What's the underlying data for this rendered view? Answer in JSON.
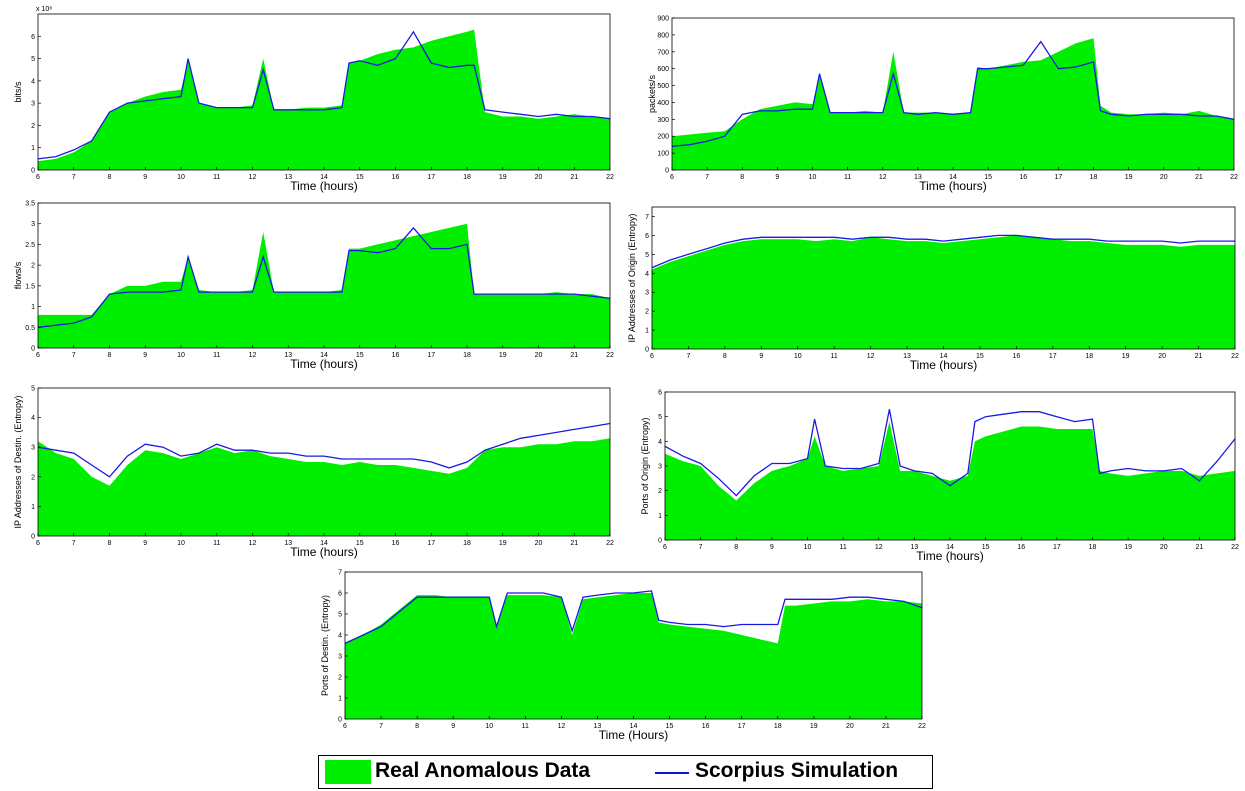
{
  "colors": {
    "real": "#00ee00",
    "sim": "#1a1ae0",
    "axis": "#000000"
  },
  "legend": {
    "real_label": "Real Anomalous Data",
    "sim_label": "Scorpius Simulation"
  },
  "chart_data": [
    {
      "type": "area",
      "ylabel": "bits/s",
      "xlabel": "Time (hours)",
      "yexponent": "x 10⁸",
      "xlim": [
        6,
        22
      ],
      "ylim": [
        0,
        7
      ],
      "yticks": [
        0,
        1,
        2,
        3,
        4,
        5,
        6
      ],
      "x": [
        6,
        6.5,
        7,
        7.5,
        8,
        8.5,
        9,
        9.5,
        10,
        10.2,
        10.5,
        11,
        11.5,
        12,
        12.3,
        12.6,
        13,
        13.5,
        14,
        14.5,
        14.7,
        15,
        15.5,
        16,
        16.5,
        17,
        17.5,
        18,
        18.2,
        18.5,
        19,
        19.5,
        20,
        20.5,
        21,
        21.5,
        22
      ],
      "series": [
        {
          "name": "Real Anomalous Data",
          "values": [
            0.4,
            0.5,
            0.8,
            1.3,
            2.6,
            3.0,
            3.3,
            3.5,
            3.6,
            4.9,
            3.0,
            2.8,
            2.8,
            2.9,
            5.0,
            2.7,
            2.7,
            2.8,
            2.8,
            2.9,
            4.8,
            4.9,
            5.2,
            5.4,
            5.5,
            5.8,
            6.0,
            6.2,
            6.3,
            2.6,
            2.4,
            2.4,
            2.3,
            2.4,
            2.5,
            2.4,
            2.3
          ]
        },
        {
          "name": "Scorpius Simulation",
          "values": [
            0.5,
            0.6,
            0.9,
            1.3,
            2.6,
            3.0,
            3.1,
            3.2,
            3.3,
            5.0,
            3.0,
            2.8,
            2.8,
            2.8,
            4.5,
            2.7,
            2.7,
            2.7,
            2.7,
            2.8,
            4.8,
            4.9,
            4.7,
            5.0,
            6.2,
            4.8,
            4.6,
            4.7,
            4.7,
            2.7,
            2.6,
            2.5,
            2.4,
            2.5,
            2.4,
            2.4,
            2.3
          ]
        }
      ]
    },
    {
      "type": "area",
      "ylabel": "packets/s",
      "xlabel": "Time (hours)",
      "xlim": [
        6,
        22
      ],
      "ylim": [
        0,
        900
      ],
      "yticks": [
        0,
        100,
        200,
        300,
        400,
        500,
        600,
        700,
        800,
        900
      ],
      "x": [
        6,
        6.5,
        7,
        7.5,
        8,
        8.5,
        9,
        9.5,
        10,
        10.2,
        10.5,
        11,
        11.5,
        12,
        12.3,
        12.6,
        13,
        13.5,
        14,
        14.5,
        14.7,
        15,
        15.5,
        16,
        16.5,
        17,
        17.5,
        18,
        18.2,
        18.5,
        19,
        19.5,
        20,
        20.5,
        21,
        21.5,
        22
      ],
      "series": [
        {
          "name": "Real Anomalous Data",
          "values": [
            200,
            210,
            220,
            230,
            300,
            360,
            380,
            400,
            390,
            560,
            340,
            340,
            350,
            340,
            700,
            340,
            340,
            340,
            330,
            340,
            610,
            600,
            620,
            640,
            650,
            700,
            750,
            780,
            380,
            340,
            330,
            330,
            340,
            330,
            350,
            320,
            300
          ]
        },
        {
          "name": "Scorpius Simulation",
          "values": [
            140,
            150,
            170,
            200,
            330,
            350,
            350,
            360,
            360,
            570,
            340,
            340,
            340,
            340,
            570,
            340,
            330,
            340,
            330,
            340,
            600,
            600,
            610,
            620,
            760,
            600,
            610,
            640,
            350,
            330,
            320,
            330,
            330,
            330,
            320,
            320,
            300
          ]
        }
      ]
    },
    {
      "type": "area",
      "ylabel": "flows/s",
      "xlabel": "Time (hours)",
      "xlim": [
        6,
        22
      ],
      "ylim": [
        0,
        3.5
      ],
      "yticks": [
        0,
        0.5,
        1,
        1.5,
        2,
        2.5,
        3,
        3.5
      ],
      "x": [
        6,
        6.5,
        7,
        7.5,
        8,
        8.5,
        9,
        9.5,
        10,
        10.2,
        10.5,
        11,
        11.5,
        12,
        12.3,
        12.6,
        13,
        13.5,
        14,
        14.5,
        14.7,
        15,
        15.5,
        16,
        16.5,
        17,
        17.5,
        18,
        18.2,
        18.5,
        19,
        19.5,
        20,
        20.5,
        21,
        21.5,
        22
      ],
      "series": [
        {
          "name": "Real Anomalous Data",
          "values": [
            0.8,
            0.8,
            0.8,
            0.8,
            1.3,
            1.5,
            1.5,
            1.6,
            1.6,
            2.2,
            1.4,
            1.35,
            1.35,
            1.4,
            2.8,
            1.35,
            1.35,
            1.35,
            1.35,
            1.4,
            2.4,
            2.4,
            2.5,
            2.6,
            2.7,
            2.8,
            2.9,
            3.0,
            1.3,
            1.3,
            1.3,
            1.3,
            1.3,
            1.35,
            1.3,
            1.3,
            1.2
          ]
        },
        {
          "name": "Scorpius Simulation",
          "values": [
            0.5,
            0.55,
            0.6,
            0.75,
            1.3,
            1.35,
            1.35,
            1.35,
            1.4,
            2.2,
            1.35,
            1.35,
            1.35,
            1.35,
            2.2,
            1.35,
            1.35,
            1.35,
            1.35,
            1.35,
            2.35,
            2.35,
            2.3,
            2.4,
            2.9,
            2.4,
            2.4,
            2.5,
            1.3,
            1.3,
            1.3,
            1.3,
            1.3,
            1.3,
            1.3,
            1.25,
            1.2
          ]
        }
      ]
    },
    {
      "type": "area",
      "ylabel": "IP Addresses of Origin (Entropy)",
      "xlabel": "Time (hours)",
      "xlim": [
        6,
        22
      ],
      "ylim": [
        0,
        7.5
      ],
      "yticks": [
        0,
        1,
        2,
        3,
        4,
        5,
        6,
        7
      ],
      "x": [
        6,
        6.5,
        7,
        7.5,
        8,
        8.5,
        9,
        9.5,
        10,
        10.5,
        11,
        11.5,
        12,
        12.5,
        13,
        13.5,
        14,
        14.5,
        15,
        15.5,
        16,
        16.5,
        17,
        17.5,
        18,
        18.5,
        19,
        19.5,
        20,
        20.5,
        21,
        21.5,
        22
      ],
      "series": [
        {
          "name": "Real Anomalous Data",
          "values": [
            4.2,
            4.6,
            4.9,
            5.2,
            5.5,
            5.7,
            5.8,
            5.8,
            5.8,
            5.7,
            5.8,
            5.7,
            5.9,
            5.8,
            5.7,
            5.7,
            5.6,
            5.7,
            5.8,
            5.9,
            6.0,
            5.9,
            5.8,
            5.7,
            5.7,
            5.6,
            5.5,
            5.5,
            5.5,
            5.4,
            5.5,
            5.5,
            5.5
          ]
        },
        {
          "name": "Scorpius Simulation",
          "values": [
            4.3,
            4.7,
            5.0,
            5.3,
            5.6,
            5.8,
            5.9,
            5.9,
            5.9,
            5.9,
            5.9,
            5.8,
            5.9,
            5.9,
            5.8,
            5.8,
            5.7,
            5.8,
            5.9,
            6.0,
            6.0,
            5.9,
            5.8,
            5.8,
            5.8,
            5.7,
            5.7,
            5.7,
            5.7,
            5.6,
            5.7,
            5.7,
            5.7
          ]
        }
      ]
    },
    {
      "type": "area",
      "ylabel": "IP Addresses of Destin. (Entropy)",
      "xlabel": "Time (hours)",
      "xlim": [
        6,
        22
      ],
      "ylim": [
        0,
        5
      ],
      "yticks": [
        0,
        1,
        2,
        3,
        4,
        5
      ],
      "x": [
        6,
        6.5,
        7,
        7.5,
        8,
        8.5,
        9,
        9.5,
        10,
        10.5,
        11,
        11.5,
        12,
        12.5,
        13,
        13.5,
        14,
        14.5,
        15,
        15.5,
        16,
        16.5,
        17,
        17.5,
        18,
        18.5,
        19,
        19.5,
        20,
        20.5,
        21,
        21.5,
        22
      ],
      "series": [
        {
          "name": "Real Anomalous Data",
          "values": [
            3.2,
            2.8,
            2.6,
            2.0,
            1.7,
            2.4,
            2.9,
            2.8,
            2.6,
            2.8,
            3.0,
            2.8,
            2.9,
            2.7,
            2.6,
            2.5,
            2.5,
            2.4,
            2.5,
            2.4,
            2.4,
            2.3,
            2.2,
            2.1,
            2.3,
            2.9,
            3.0,
            3.0,
            3.1,
            3.1,
            3.2,
            3.2,
            3.3
          ]
        },
        {
          "name": "Scorpius Simulation",
          "values": [
            3.0,
            2.9,
            2.8,
            2.4,
            2.0,
            2.7,
            3.1,
            3.0,
            2.7,
            2.8,
            3.1,
            2.9,
            2.9,
            2.8,
            2.8,
            2.7,
            2.7,
            2.6,
            2.6,
            2.6,
            2.6,
            2.6,
            2.5,
            2.3,
            2.5,
            2.9,
            3.1,
            3.3,
            3.4,
            3.5,
            3.6,
            3.7,
            3.8
          ]
        }
      ]
    },
    {
      "type": "area",
      "ylabel": "Ports of Origin (Entropy)",
      "xlabel": "Time (hours)",
      "xlim": [
        6,
        22
      ],
      "ylim": [
        0,
        6
      ],
      "yticks": [
        0,
        1,
        2,
        3,
        4,
        5,
        6
      ],
      "x": [
        6,
        6.5,
        7,
        7.5,
        8,
        8.5,
        9,
        9.5,
        10,
        10.2,
        10.5,
        11,
        11.5,
        12,
        12.3,
        12.6,
        13,
        13.5,
        14,
        14.5,
        14.7,
        15,
        15.5,
        16,
        16.5,
        17,
        17.5,
        18,
        18.2,
        18.5,
        19,
        19.5,
        20,
        20.5,
        21,
        21.5,
        22
      ],
      "series": [
        {
          "name": "Real Anomalous Data",
          "values": [
            3.5,
            3.2,
            3.0,
            2.2,
            1.6,
            2.3,
            2.8,
            3.0,
            3.3,
            4.2,
            3.0,
            2.8,
            2.9,
            3.0,
            4.8,
            2.8,
            2.8,
            2.6,
            2.4,
            2.6,
            4.0,
            4.2,
            4.4,
            4.6,
            4.6,
            4.5,
            4.5,
            4.5,
            2.8,
            2.7,
            2.6,
            2.7,
            2.8,
            2.8,
            2.6,
            2.7,
            2.8
          ]
        },
        {
          "name": "Scorpius Simulation",
          "values": [
            3.8,
            3.4,
            3.1,
            2.5,
            1.8,
            2.6,
            3.1,
            3.1,
            3.3,
            4.9,
            3.0,
            2.9,
            2.9,
            3.1,
            5.3,
            3.0,
            2.8,
            2.7,
            2.2,
            2.7,
            4.8,
            5.0,
            5.1,
            5.2,
            5.2,
            5.0,
            4.8,
            4.9,
            2.7,
            2.8,
            2.9,
            2.8,
            2.8,
            2.9,
            2.4,
            3.2,
            4.1
          ]
        }
      ]
    },
    {
      "type": "area",
      "ylabel": "Ports of Destin. (Entropy)",
      "xlabel": "Time (Hours)",
      "xlim": [
        6,
        22
      ],
      "ylim": [
        0,
        7
      ],
      "yticks": [
        0,
        1,
        2,
        3,
        4,
        5,
        6,
        7
      ],
      "x": [
        6,
        6.5,
        7,
        7.5,
        8,
        8.5,
        9,
        9.5,
        10,
        10.2,
        10.5,
        11,
        11.5,
        12,
        12.3,
        12.6,
        13,
        13.5,
        14,
        14.5,
        14.7,
        15,
        15.5,
        16,
        16.5,
        17,
        17.5,
        18,
        18.2,
        18.5,
        19,
        19.5,
        20,
        20.5,
        21,
        21.5,
        22
      ],
      "series": [
        {
          "name": "Real Anomalous Data",
          "values": [
            3.6,
            4.0,
            4.5,
            5.2,
            5.9,
            5.9,
            5.8,
            5.8,
            5.8,
            4.5,
            5.9,
            5.9,
            5.9,
            5.8,
            4.0,
            5.7,
            5.8,
            5.9,
            6.0,
            6.0,
            4.6,
            4.5,
            4.4,
            4.3,
            4.2,
            4.0,
            3.8,
            3.6,
            5.4,
            5.4,
            5.5,
            5.6,
            5.6,
            5.7,
            5.6,
            5.6,
            5.5
          ]
        },
        {
          "name": "Scorpius Simulation",
          "values": [
            3.6,
            4.0,
            4.4,
            5.1,
            5.8,
            5.8,
            5.8,
            5.8,
            5.8,
            4.4,
            6.0,
            6.0,
            6.0,
            5.8,
            4.2,
            5.8,
            5.9,
            6.0,
            6.0,
            6.1,
            4.7,
            4.6,
            4.5,
            4.5,
            4.4,
            4.5,
            4.5,
            4.5,
            5.7,
            5.7,
            5.7,
            5.7,
            5.8,
            5.8,
            5.7,
            5.6,
            5.3
          ]
        }
      ]
    }
  ]
}
